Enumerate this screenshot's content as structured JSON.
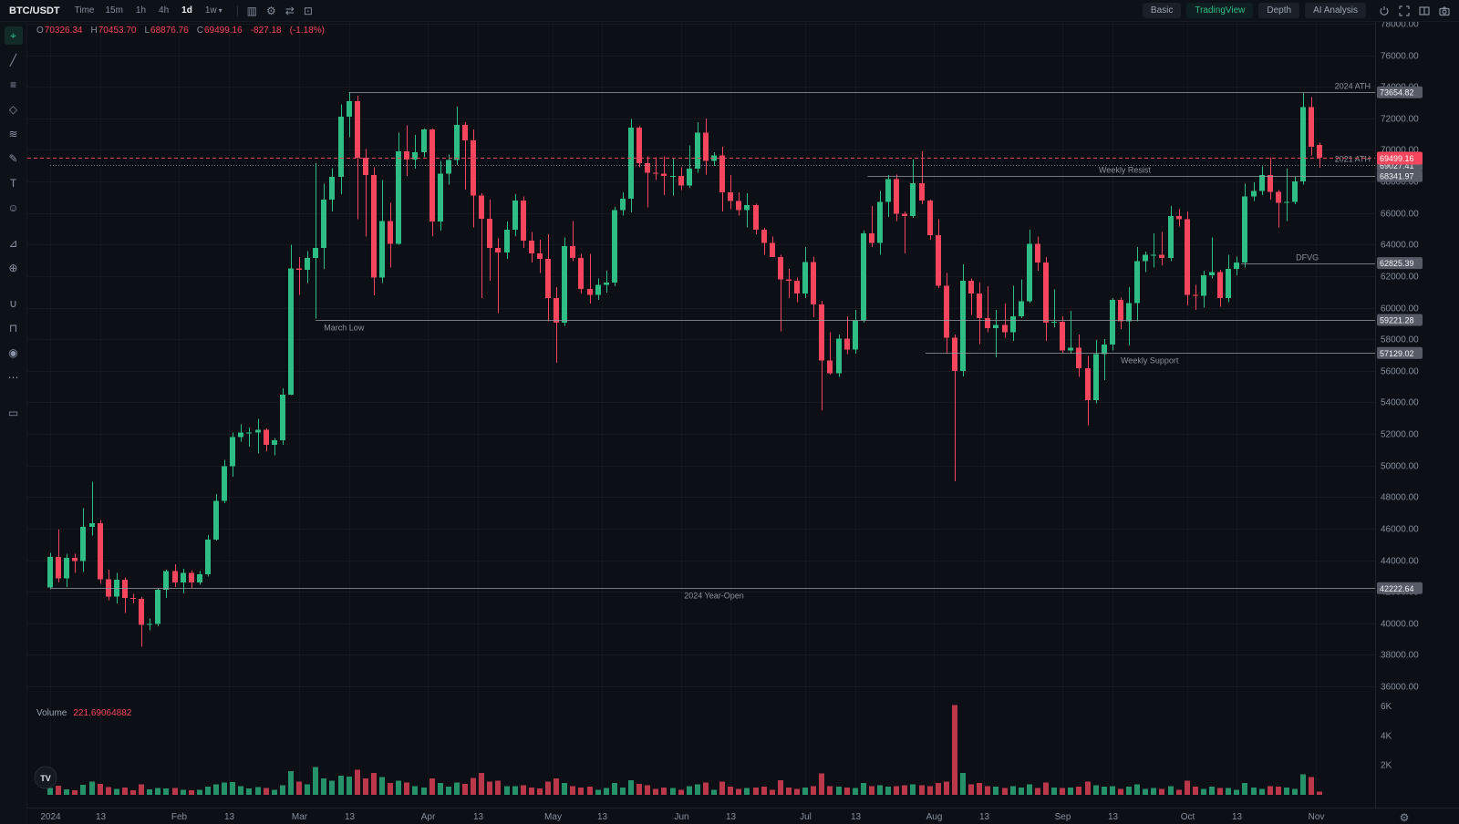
{
  "topbar": {
    "symbol": "BTC/USDT",
    "time_label": "Time",
    "timeframes": [
      "15m",
      "1h",
      "4h",
      "1d",
      "1w"
    ],
    "active_timeframe": "1d",
    "dropdown_caret": "▾",
    "left_icons": [
      {
        "name": "chart-style-icon",
        "glyph": "▥"
      },
      {
        "name": "chart-settings-icon",
        "glyph": "⚙"
      },
      {
        "name": "compare-icon",
        "glyph": "⇄"
      },
      {
        "name": "expand-chart-icon",
        "glyph": "⊡"
      }
    ],
    "right_buttons": [
      {
        "name": "chart-mode-basic",
        "label": "Basic",
        "active": false
      },
      {
        "name": "chart-mode-tradingview",
        "label": "TradingView",
        "active": true
      },
      {
        "name": "chart-mode-depth",
        "label": "Depth",
        "active": false
      },
      {
        "name": "ai-analysis-button",
        "label": "AI Analysis",
        "active": false
      }
    ]
  },
  "ohlc": {
    "o_label": "O",
    "o_value": "70326.34",
    "h_label": "H",
    "h_value": "70453.70",
    "l_label": "L",
    "l_value": "68876.76",
    "c_label": "C",
    "c_value": "69499.16",
    "change": "-827.18",
    "change_pct": "(-1.18%)"
  },
  "volume_legend": {
    "label": "Volume",
    "value": "221.69064882"
  },
  "watermark": "TV",
  "left_toolbar": [
    {
      "name": "cursor-tool-icon",
      "glyph": "⌖",
      "active": true
    },
    {
      "name": "trend-line-tool-icon",
      "glyph": "╱"
    },
    {
      "name": "horizontal-line-tool-icon",
      "glyph": "≡"
    },
    {
      "name": "pattern-tool-icon",
      "glyph": "◇"
    },
    {
      "name": "wave-tool-icon",
      "glyph": "≋"
    },
    {
      "name": "brush-tool-icon",
      "glyph": "✎"
    },
    {
      "name": "text-tool-icon",
      "glyph": "T"
    },
    {
      "name": "emoji-tool-icon",
      "glyph": "☺"
    },
    {
      "name": "measure-tool-icon",
      "glyph": "⊿",
      "gap": true
    },
    {
      "name": "zoom-tool-icon",
      "glyph": "⊕"
    },
    {
      "name": "magnet-tool-icon",
      "glyph": "∪",
      "gap": true
    },
    {
      "name": "lock-tool-icon",
      "glyph": "⊓"
    },
    {
      "name": "eye-tool-icon",
      "glyph": "◉"
    },
    {
      "name": "more-tools-icon",
      "glyph": "⋯"
    },
    {
      "name": "delete-tool-icon",
      "glyph": "▭",
      "gap": true
    }
  ],
  "colors": {
    "up": "#2ebd85",
    "down": "#f6465d",
    "accent": "#2ebd85",
    "axis_text": "#848e9c",
    "annotation": "#979ca6",
    "current_price": "#f6465d",
    "badge_bg": "#565b66",
    "bg": "#0c1016"
  },
  "chart_data": {
    "type": "candlestick",
    "symbol": "BTC/USDT",
    "interval": "1d",
    "y_min": 36000,
    "y_max": 78000,
    "y_step": 2000,
    "days_per_candle": 2,
    "current_price": 69499.16,
    "current_price_label": "69499.16",
    "x_ticks": [
      {
        "label": "2024",
        "day": 0
      },
      {
        "label": "13",
        "day": 12
      },
      {
        "label": "Feb",
        "day": 31
      },
      {
        "label": "13",
        "day": 43
      },
      {
        "label": "Mar",
        "day": 60
      },
      {
        "label": "13",
        "day": 72
      },
      {
        "label": "Apr",
        "day": 91
      },
      {
        "label": "13",
        "day": 103
      },
      {
        "label": "May",
        "day": 121
      },
      {
        "label": "13",
        "day": 133
      },
      {
        "label": "Jun",
        "day": 152
      },
      {
        "label": "13",
        "day": 164
      },
      {
        "label": "Jul",
        "day": 182
      },
      {
        "label": "13",
        "day": 194
      },
      {
        "label": "Aug",
        "day": 213
      },
      {
        "label": "13",
        "day": 225
      },
      {
        "label": "Sep",
        "day": 244
      },
      {
        "label": "13",
        "day": 256
      },
      {
        "label": "Oct",
        "day": 274
      },
      {
        "label": "13",
        "day": 286
      },
      {
        "label": "Nov",
        "day": 305
      }
    ],
    "volume_ticks": [
      {
        "label": "6K",
        "value": 6000
      },
      {
        "label": "4K",
        "value": 4000
      },
      {
        "label": "2K",
        "value": 2000
      }
    ],
    "annotations": [
      {
        "name": "ath-2024",
        "label": "2024 ATH",
        "price": 73654.82,
        "badge": "73654.82",
        "from_day": 72,
        "label_anchor": "right"
      },
      {
        "name": "ath-2021",
        "label": "2021 ATH",
        "price": 69027.41,
        "badge": "69027.41",
        "from_day": 0,
        "label_anchor": "right",
        "dotted": true
      },
      {
        "name": "weekly-resist",
        "label": "Weekly Resist",
        "price": 68341.97,
        "badge": "68341.97",
        "from_day": 197,
        "label_day": 259
      },
      {
        "name": "dfvg",
        "label": "DFVG",
        "price": 62825.39,
        "badge": "62825.39",
        "from_day": 287,
        "label_day": 303
      },
      {
        "name": "march-low",
        "label": "March Low",
        "price": 59221.28,
        "badge": "59221.28",
        "from_day": 64,
        "label_day": 66,
        "label_below": true,
        "anchor": "start"
      },
      {
        "name": "weekly-support",
        "label": "Weekly Support",
        "price": 57129.02,
        "badge": "57129.02",
        "from_day": 211,
        "label_day": 265,
        "label_below": true
      },
      {
        "name": "year-open",
        "label": "2024 Year-Open",
        "price": 42222.64,
        "badge": "42222.64",
        "from_day": 0,
        "label_day": 160,
        "label_below": true
      }
    ],
    "candles": [
      [
        42280,
        44450,
        42150,
        44200,
        450
      ],
      [
        44200,
        45950,
        42600,
        42850,
        620
      ],
      [
        42850,
        44400,
        42300,
        44150,
        380
      ],
      [
        44150,
        44400,
        43200,
        43950,
        320
      ],
      [
        43950,
        47300,
        43250,
        46100,
        680
      ],
      [
        46100,
        48970,
        45550,
        46350,
        890
      ],
      [
        46350,
        46550,
        42500,
        42800,
        750
      ],
      [
        42800,
        43400,
        41450,
        41700,
        520
      ],
      [
        41700,
        43200,
        41250,
        42750,
        410
      ],
      [
        42750,
        42900,
        40650,
        41600,
        480
      ],
      [
        41600,
        41850,
        41250,
        41550,
        300
      ],
      [
        41550,
        41650,
        38500,
        39900,
        720
      ],
      [
        39900,
        40300,
        39550,
        39950,
        380
      ],
      [
        39950,
        42250,
        39800,
        42120,
        450
      ],
      [
        42120,
        43400,
        41600,
        43300,
        420
      ],
      [
        43300,
        43750,
        42300,
        42580,
        460
      ],
      [
        42580,
        43450,
        41900,
        43200,
        350
      ],
      [
        43200,
        43350,
        42250,
        42600,
        300
      ],
      [
        42600,
        43300,
        42450,
        43100,
        330
      ],
      [
        43100,
        45600,
        42950,
        45300,
        550
      ],
      [
        45300,
        48200,
        45250,
        47750,
        700
      ],
      [
        47750,
        50350,
        47600,
        49950,
        820
      ],
      [
        49950,
        52100,
        49300,
        51800,
        880
      ],
      [
        51800,
        52600,
        51500,
        52100,
        600
      ],
      [
        52100,
        52400,
        51200,
        52100,
        420
      ],
      [
        52100,
        52950,
        50750,
        52250,
        540
      ],
      [
        52250,
        52350,
        50900,
        51300,
        470
      ],
      [
        51300,
        51750,
        50650,
        51600,
        350
      ],
      [
        51600,
        54900,
        51300,
        54500,
        640
      ],
      [
        54500,
        64000,
        54450,
        62500,
        1600
      ],
      [
        62500,
        63200,
        60800,
        62400,
        900
      ],
      [
        62400,
        63600,
        61550,
        63150,
        700
      ],
      [
        63150,
        69170,
        59300,
        63800,
        1900
      ],
      [
        63800,
        67850,
        62450,
        66850,
        1100
      ],
      [
        66850,
        68850,
        66100,
        68300,
        950
      ],
      [
        68300,
        72900,
        67200,
        72100,
        1300
      ],
      [
        72100,
        73654,
        70800,
        73100,
        1250
      ],
      [
        73100,
        73450,
        65600,
        69500,
        1700
      ],
      [
        69500,
        70050,
        64500,
        68400,
        1100
      ],
      [
        68400,
        68900,
        60770,
        61900,
        1500
      ],
      [
        61900,
        68100,
        61550,
        65500,
        1200
      ],
      [
        65500,
        66650,
        62550,
        64050,
        800
      ],
      [
        64050,
        71100,
        64000,
        69900,
        950
      ],
      [
        69900,
        71550,
        68350,
        69400,
        850
      ],
      [
        69400,
        70950,
        68800,
        69850,
        600
      ],
      [
        69850,
        71350,
        69550,
        71300,
        500
      ],
      [
        71300,
        71350,
        64550,
        65450,
        1100
      ],
      [
        65450,
        69300,
        64900,
        68500,
        800
      ],
      [
        68500,
        69700,
        67800,
        69350,
        550
      ],
      [
        69350,
        72750,
        69050,
        71600,
        850
      ],
      [
        71600,
        71750,
        67500,
        70600,
        750
      ],
      [
        70600,
        71300,
        65100,
        67100,
        1150
      ],
      [
        67100,
        67250,
        60600,
        65650,
        1500
      ],
      [
        65650,
        66850,
        61700,
        63800,
        900
      ],
      [
        63800,
        64400,
        59650,
        63500,
        950
      ],
      [
        63500,
        65450,
        63100,
        64950,
        600
      ],
      [
        64950,
        67200,
        64550,
        66800,
        600
      ],
      [
        66800,
        67050,
        63800,
        64250,
        650
      ],
      [
        64250,
        64800,
        62850,
        63450,
        500
      ],
      [
        63450,
        64300,
        62200,
        63100,
        420
      ],
      [
        63100,
        64650,
        59150,
        60600,
        900
      ],
      [
        60600,
        61300,
        56500,
        59050,
        1100
      ],
      [
        59050,
        64450,
        58850,
        63900,
        800
      ],
      [
        63900,
        65500,
        62950,
        63160,
        600
      ],
      [
        63160,
        63400,
        60900,
        61200,
        500
      ],
      [
        61200,
        63400,
        60250,
        60800,
        550
      ],
      [
        60800,
        61850,
        60500,
        61450,
        350
      ],
      [
        61450,
        62350,
        60950,
        61600,
        450
      ],
      [
        61600,
        66400,
        61350,
        66200,
        800
      ],
      [
        66200,
        67300,
        65850,
        66900,
        500
      ],
      [
        66900,
        71950,
        66050,
        71400,
        1000
      ],
      [
        71400,
        71500,
        68900,
        69150,
        750
      ],
      [
        69150,
        69600,
        66350,
        68550,
        650
      ],
      [
        68550,
        69550,
        68100,
        68500,
        400
      ],
      [
        68500,
        69600,
        67150,
        68350,
        500
      ],
      [
        68350,
        69450,
        67100,
        68350,
        450
      ],
      [
        68350,
        68900,
        67450,
        67750,
        350
      ],
      [
        67750,
        70300,
        67600,
        68800,
        600
      ],
      [
        68800,
        71750,
        68550,
        71100,
        700
      ],
      [
        71100,
        71997,
        68450,
        69300,
        850
      ],
      [
        69300,
        69850,
        69000,
        69650,
        350
      ],
      [
        69650,
        70200,
        66100,
        67300,
        900
      ],
      [
        67300,
        68400,
        66250,
        66750,
        550
      ],
      [
        66750,
        67300,
        65850,
        66200,
        400
      ],
      [
        66200,
        67250,
        65100,
        66500,
        450
      ],
      [
        66500,
        66600,
        64650,
        64950,
        500
      ],
      [
        64950,
        65050,
        63350,
        64100,
        550
      ],
      [
        64100,
        64500,
        63200,
        63200,
        350
      ],
      [
        63200,
        63350,
        58500,
        61800,
        1000
      ],
      [
        61800,
        62450,
        60600,
        61700,
        500
      ],
      [
        61700,
        61900,
        60350,
        60900,
        400
      ],
      [
        60900,
        63850,
        60600,
        62900,
        500
      ],
      [
        62900,
        63250,
        59400,
        60200,
        600
      ],
      [
        60200,
        60450,
        53500,
        56650,
        1450
      ],
      [
        56650,
        58450,
        55750,
        55850,
        600
      ],
      [
        55850,
        58300,
        55600,
        58050,
        550
      ],
      [
        58050,
        59450,
        57050,
        57350,
        500
      ],
      [
        57350,
        59850,
        57100,
        59200,
        450
      ],
      [
        59200,
        64900,
        59050,
        64700,
        800
      ],
      [
        64700,
        66450,
        63850,
        64100,
        600
      ],
      [
        64100,
        67400,
        63350,
        66700,
        650
      ],
      [
        66700,
        68400,
        65750,
        68150,
        550
      ],
      [
        68150,
        68450,
        65500,
        65950,
        600
      ],
      [
        65950,
        66100,
        63450,
        65800,
        650
      ],
      [
        65800,
        69400,
        65700,
        67900,
        700
      ],
      [
        67900,
        69900,
        66550,
        66800,
        650
      ],
      [
        66800,
        66850,
        64300,
        64600,
        600
      ],
      [
        64600,
        65600,
        61250,
        61400,
        800
      ],
      [
        61400,
        62200,
        57100,
        58100,
        900
      ],
      [
        58100,
        58300,
        49000,
        56000,
        6100
      ],
      [
        56000,
        62750,
        55650,
        61700,
        1500
      ],
      [
        61700,
        61850,
        59550,
        60900,
        700
      ],
      [
        60900,
        61600,
        57700,
        59350,
        800
      ],
      [
        59350,
        61350,
        58450,
        58700,
        600
      ],
      [
        58700,
        59850,
        56850,
        58900,
        550
      ],
      [
        58900,
        60250,
        58100,
        58450,
        450
      ],
      [
        58450,
        61400,
        57900,
        59450,
        600
      ],
      [
        59450,
        61800,
        59350,
        60400,
        500
      ],
      [
        60400,
        64950,
        60300,
        64050,
        700
      ],
      [
        64050,
        64500,
        62350,
        62850,
        450
      ],
      [
        62850,
        63200,
        57890,
        59050,
        850
      ],
      [
        59050,
        61150,
        58750,
        59100,
        500
      ],
      [
        59100,
        59450,
        57150,
        57300,
        450
      ],
      [
        57300,
        59800,
        57100,
        57450,
        500
      ],
      [
        57450,
        58300,
        55600,
        56150,
        550
      ],
      [
        56150,
        56950,
        52550,
        54150,
        900
      ],
      [
        54150,
        57950,
        53950,
        57050,
        650
      ],
      [
        57050,
        58000,
        55400,
        57650,
        550
      ],
      [
        57650,
        60600,
        57300,
        60500,
        600
      ],
      [
        60500,
        60650,
        58650,
        59150,
        400
      ],
      [
        59150,
        61300,
        57600,
        60300,
        550
      ],
      [
        60300,
        63850,
        59150,
        62950,
        700
      ],
      [
        62950,
        63550,
        62250,
        63350,
        400
      ],
      [
        63350,
        64700,
        62550,
        63350,
        450
      ],
      [
        63350,
        64800,
        62700,
        63150,
        400
      ],
      [
        63150,
        66450,
        62950,
        65800,
        600
      ],
      [
        65800,
        66250,
        65150,
        65600,
        350
      ],
      [
        65600,
        66100,
        60150,
        60800,
        950
      ],
      [
        60800,
        61450,
        59850,
        60750,
        550
      ],
      [
        60750,
        62350,
        60000,
        62050,
        400
      ],
      [
        62050,
        64450,
        61850,
        62250,
        550
      ],
      [
        62250,
        62400,
        60050,
        60600,
        450
      ],
      [
        60600,
        63350,
        60350,
        62450,
        450
      ],
      [
        62450,
        63250,
        62050,
        62850,
        350
      ],
      [
        62850,
        67850,
        62550,
        67050,
        800
      ],
      [
        67050,
        67950,
        66750,
        67400,
        500
      ],
      [
        67400,
        68950,
        67150,
        68400,
        400
      ],
      [
        68400,
        69500,
        66850,
        67350,
        600
      ],
      [
        67350,
        67450,
        65100,
        66650,
        550
      ],
      [
        66650,
        68800,
        65500,
        66700,
        500
      ],
      [
        66700,
        68300,
        66550,
        68000,
        400
      ],
      [
        68000,
        73600,
        67800,
        72700,
        1400
      ],
      [
        72700,
        73350,
        69650,
        70200,
        1200
      ],
      [
        70326.34,
        70453.7,
        68876.76,
        69499.16,
        221.69
      ]
    ]
  }
}
